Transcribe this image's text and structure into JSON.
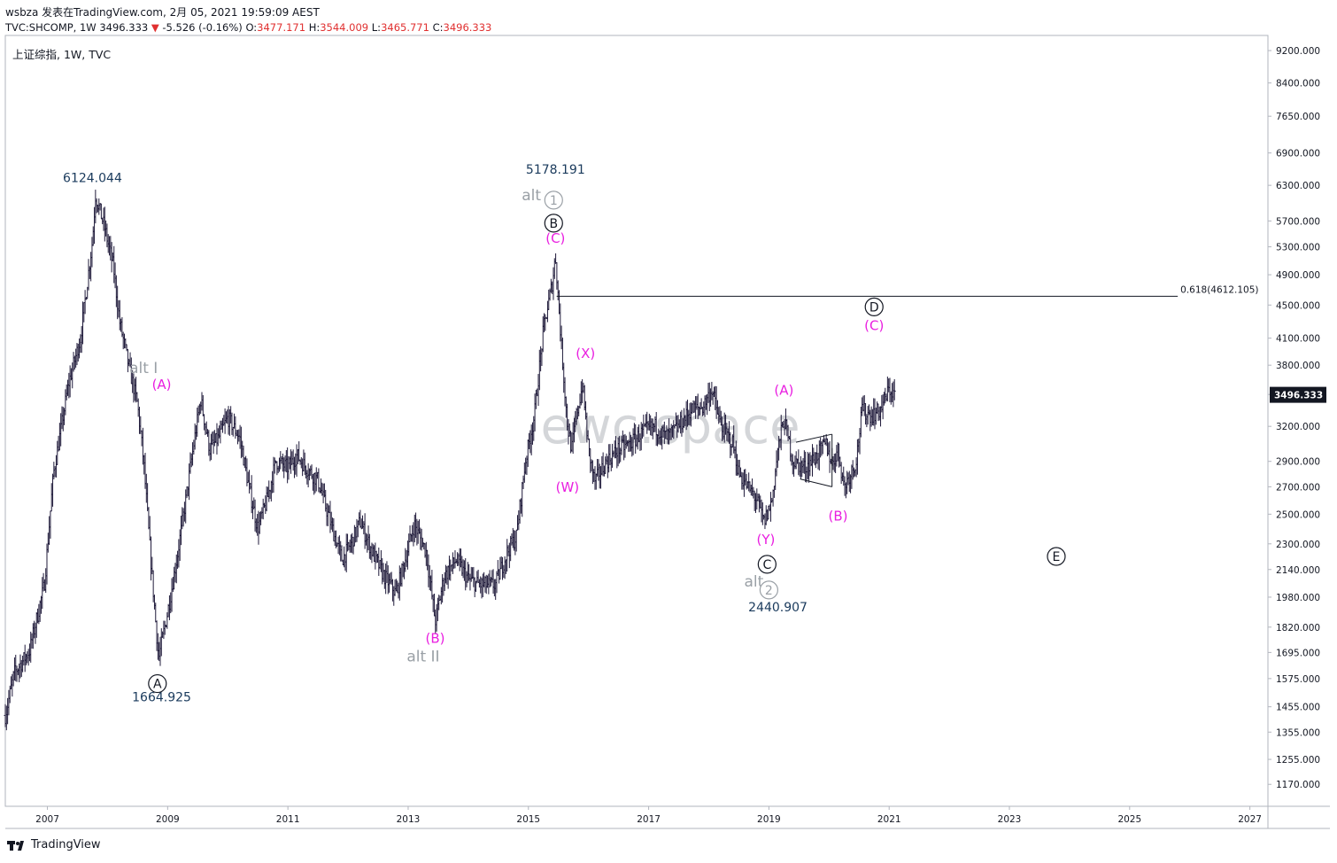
{
  "header": {
    "line1": "wsbza 发表在TradingView.com, 2月 05, 2021 19:59:09 AEST",
    "symbol": "TVC:SHCOMP, 1W 3496.333",
    "change": "-5.526 (-0.16%)",
    "o_label": "O:",
    "o_val": "3477.171",
    "h_label": "H:",
    "h_val": "3544.009",
    "l_label": "L:",
    "l_val": "3465.771",
    "c_label": "C:",
    "c_val": "3496.333"
  },
  "footer": {
    "brand": "TradingView"
  },
  "colors": {
    "bars": "#1f1a3a",
    "magenta": "#e91ee0",
    "navy": "#1a3a5c",
    "gray": "#9aa0a6",
    "price_tag": "#131722"
  },
  "chart_data": {
    "type": "bar",
    "title": "上证综指, 1W, TVC",
    "watermark": "ewc.space",
    "y_scale": "log",
    "ylim": [
      1100,
      9600
    ],
    "xlim": [
      2006.3,
      2027.3
    ],
    "y_ticks": [
      "9200.000",
      "8400.000",
      "7650.000",
      "6900.000",
      "6300.000",
      "5700.000",
      "5300.000",
      "4900.000",
      "4500.000",
      "4100.000",
      "3800.000",
      "3500.000",
      "3200.000",
      "2900.000",
      "2700.000",
      "2500.000",
      "2300.000",
      "2140.000",
      "1980.000",
      "1820.000",
      "1695.000",
      "1575.000",
      "1455.000",
      "1355.000",
      "1255.000",
      "1170.000"
    ],
    "x_ticks": [
      "2007",
      "2009",
      "2011",
      "2013",
      "2015",
      "2017",
      "2019",
      "2021",
      "2023",
      "2025",
      "2027"
    ],
    "last_price": "3496.333",
    "fib_label": "0.618(4612.105)",
    "fib_level": 4612.105,
    "fib_x": [
      2015.47,
      2025.8
    ],
    "path": [
      [
        2006.3,
        1420
      ],
      [
        2006.45,
        1600
      ],
      [
        2006.7,
        1700
      ],
      [
        2006.95,
        2050
      ],
      [
        2007.1,
        2800
      ],
      [
        2007.35,
        3600
      ],
      [
        2007.55,
        4100
      ],
      [
        2007.75,
        5400
      ],
      [
        2007.8,
        6124
      ],
      [
        2007.95,
        5600
      ],
      [
        2008.1,
        5000
      ],
      [
        2008.2,
        4300
      ],
      [
        2008.35,
        3800
      ],
      [
        2008.5,
        3400
      ],
      [
        2008.6,
        2900
      ],
      [
        2008.7,
        2300
      ],
      [
        2008.8,
        1850
      ],
      [
        2008.85,
        1665
      ],
      [
        2009.0,
        1900
      ],
      [
        2009.15,
        2200
      ],
      [
        2009.3,
        2600
      ],
      [
        2009.45,
        3100
      ],
      [
        2009.55,
        3450
      ],
      [
        2009.7,
        3000
      ],
      [
        2009.85,
        3100
      ],
      [
        2010.0,
        3280
      ],
      [
        2010.2,
        3100
      ],
      [
        2010.35,
        2700
      ],
      [
        2010.5,
        2400
      ],
      [
        2010.65,
        2600
      ],
      [
        2010.8,
        2900
      ],
      [
        2011.0,
        2850
      ],
      [
        2011.15,
        2950
      ],
      [
        2011.3,
        2850
      ],
      [
        2011.5,
        2750
      ],
      [
        2011.7,
        2450
      ],
      [
        2011.9,
        2200
      ],
      [
        2012.05,
        2300
      ],
      [
        2012.2,
        2450
      ],
      [
        2012.4,
        2250
      ],
      [
        2012.6,
        2100
      ],
      [
        2012.8,
        2000
      ],
      [
        2012.95,
        2200
      ],
      [
        2013.1,
        2430
      ],
      [
        2013.3,
        2250
      ],
      [
        2013.45,
        1849
      ],
      [
        2013.6,
        2100
      ],
      [
        2013.8,
        2200
      ],
      [
        2014.0,
        2080
      ],
      [
        2014.2,
        2050
      ],
      [
        2014.45,
        2050
      ],
      [
        2014.65,
        2250
      ],
      [
        2014.8,
        2350
      ],
      [
        2014.95,
        2900
      ],
      [
        2015.1,
        3300
      ],
      [
        2015.25,
        4200
      ],
      [
        2015.4,
        4800
      ],
      [
        2015.45,
        5178
      ],
      [
        2015.55,
        4000
      ],
      [
        2015.65,
        3200
      ],
      [
        2015.72,
        3000
      ],
      [
        2015.8,
        3300
      ],
      [
        2015.9,
        3600
      ],
      [
        2016.0,
        3000
      ],
      [
        2016.1,
        2740
      ],
      [
        2016.3,
        2900
      ],
      [
        2016.5,
        3000
      ],
      [
        2016.7,
        3050
      ],
      [
        2016.9,
        3150
      ],
      [
        2017.1,
        3200
      ],
      [
        2017.3,
        3100
      ],
      [
        2017.5,
        3200
      ],
      [
        2017.7,
        3350
      ],
      [
        2017.9,
        3380
      ],
      [
        2018.05,
        3550
      ],
      [
        2018.2,
        3200
      ],
      [
        2018.4,
        3050
      ],
      [
        2018.5,
        2800
      ],
      [
        2018.65,
        2700
      ],
      [
        2018.8,
        2600
      ],
      [
        2018.92,
        2441
      ],
      [
        2019.05,
        2600
      ],
      [
        2019.15,
        3000
      ],
      [
        2019.25,
        3270
      ],
      [
        2019.4,
        2900
      ],
      [
        2019.6,
        2850
      ],
      [
        2019.8,
        2950
      ],
      [
        2019.95,
        3050
      ],
      [
        2020.05,
        2880
      ],
      [
        2020.15,
        3000
      ],
      [
        2020.25,
        2700
      ],
      [
        2020.35,
        2800
      ],
      [
        2020.45,
        2900
      ],
      [
        2020.55,
        3350
      ],
      [
        2020.7,
        3300
      ],
      [
        2020.85,
        3350
      ],
      [
        2021.0,
        3550
      ],
      [
        2021.1,
        3496
      ]
    ],
    "annotations": [
      {
        "text": "6124.044",
        "x": 2007.75,
        "price": 6124.044,
        "dy": -15,
        "color": "navy",
        "size": 14
      },
      {
        "text": "1664.925",
        "x": 2008.9,
        "price": 1664.925,
        "dy": 48,
        "color": "navy",
        "size": 14
      },
      {
        "text": "5178.191",
        "x": 2015.45,
        "price": 5178.191,
        "dy": -92,
        "color": "navy",
        "size": 14
      },
      {
        "text": "2440.907",
        "x": 2019.15,
        "price": 2440.907,
        "dy": 100,
        "color": "navy",
        "size": 14
      },
      {
        "text": "alt I",
        "x": 2008.6,
        "price": 3450,
        "dy": -30,
        "color": "gray",
        "size": 17
      },
      {
        "text": "(A)",
        "x": 2008.9,
        "price": 3450,
        "dy": -12,
        "color": "magenta",
        "size": 15
      },
      {
        "text": "alt",
        "x": 2015.05,
        "price": 5178,
        "dy": -62,
        "color": "gray",
        "size": 17
      },
      {
        "text": "(C)",
        "x": 2015.45,
        "price": 5178,
        "dy": -14,
        "color": "magenta",
        "size": 15
      },
      {
        "text": "(X)",
        "x": 2015.95,
        "price": 3600,
        "dy": -30,
        "color": "magenta",
        "size": 15
      },
      {
        "text": "(W)",
        "x": 2015.65,
        "price": 3000,
        "dy": 48,
        "color": "magenta",
        "size": 15
      },
      {
        "text": "(B)",
        "x": 2013.45,
        "price": 1849,
        "dy": 24,
        "color": "magenta",
        "size": 15
      },
      {
        "text": "alt II",
        "x": 2013.25,
        "price": 1849,
        "dy": 45,
        "color": "gray",
        "size": 17
      },
      {
        "text": "(A)",
        "x": 2019.25,
        "price": 3270,
        "dy": -27,
        "color": "magenta",
        "size": 15
      },
      {
        "text": "(Y)",
        "x": 2018.95,
        "price": 2441,
        "dy": 24,
        "color": "magenta",
        "size": 15
      },
      {
        "text": "alt",
        "x": 2018.75,
        "price": 2441,
        "dy": 72,
        "color": "gray",
        "size": 17
      },
      {
        "text": "(B)",
        "x": 2020.15,
        "price": 2600,
        "dy": 23,
        "color": "magenta",
        "size": 15
      },
      {
        "text": "(C)",
        "x": 2020.75,
        "price": 4612,
        "dy": 38,
        "color": "magenta",
        "size": 15
      }
    ],
    "circled": [
      {
        "text": "A",
        "x": 2008.83,
        "price": 1664.925,
        "dy": 28,
        "style": "black"
      },
      {
        "text": "1",
        "x": 2015.42,
        "price": 5178,
        "dy": -62,
        "style": "gray"
      },
      {
        "text": "B",
        "x": 2015.42,
        "price": 5178,
        "dy": -36,
        "style": "black"
      },
      {
        "text": "C",
        "x": 2018.97,
        "price": 2441,
        "dy": 47,
        "style": "black"
      },
      {
        "text": "2",
        "x": 2019.0,
        "price": 2441,
        "dy": 76,
        "style": "gray"
      },
      {
        "text": "D",
        "x": 2020.75,
        "price": 4612,
        "dy": 12,
        "style": "black"
      },
      {
        "text": "E",
        "x": 2023.78,
        "price": 2220,
        "dy": 0,
        "style": "black"
      }
    ],
    "triangle": [
      [
        2019.45,
        3060
      ],
      [
        2020.05,
        3130
      ],
      [
        2020.05,
        2700
      ],
      [
        2019.52,
        2760
      ]
    ]
  }
}
